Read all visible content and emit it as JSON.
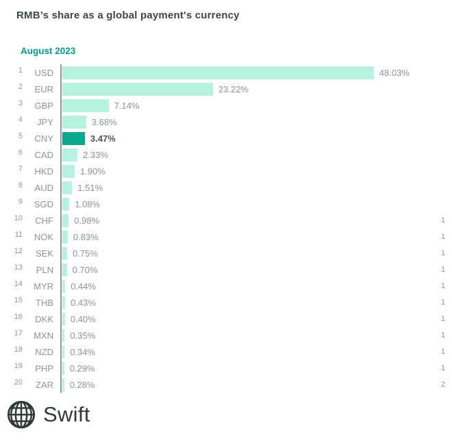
{
  "title": "RMB’s share as a global payment's currency",
  "subtitle": "August 2023",
  "chart_data": {
    "type": "bar",
    "orientation": "horizontal",
    "title": "RMB’s share as a global payment's currency",
    "subtitle": "August 2023",
    "xlim": [
      0,
      50
    ],
    "grid": false,
    "legend": "none",
    "ranks": [
      1,
      2,
      3,
      4,
      5,
      6,
      7,
      8,
      9,
      10,
      11,
      12,
      13,
      14,
      15,
      16,
      17,
      18,
      19,
      20
    ],
    "categories": [
      "USD",
      "EUR",
      "GBP",
      "JPY",
      "CNY",
      "CAD",
      "HKD",
      "AUD",
      "SGD",
      "CHF",
      "NOK",
      "SEK",
      "PLN",
      "MYR",
      "THB",
      "DKK",
      "MXN",
      "NZD",
      "PHP",
      "ZAR"
    ],
    "values": [
      48.03,
      23.22,
      7.14,
      3.68,
      3.47,
      2.33,
      1.9,
      1.51,
      1.08,
      0.98,
      0.83,
      0.75,
      0.7,
      0.44,
      0.43,
      0.4,
      0.35,
      0.34,
      0.29,
      0.28
    ],
    "value_labels": [
      "48.03%",
      "23.22%",
      "7.14%",
      "3.68%",
      "3.47%",
      "2.33%",
      "1.90%",
      "1.51%",
      "1.08%",
      "0.98%",
      "0.83%",
      "0.75%",
      "0.70%",
      "0.44%",
      "0.43%",
      "0.40%",
      "0.35%",
      "0.34%",
      "0.29%",
      "0.28%"
    ],
    "highlight_category": "CNY"
  },
  "right_edge_digits": {
    "first_row_rank": 10,
    "digits": [
      "1",
      "1",
      "1",
      "1",
      "1",
      "1",
      "1",
      "1",
      "1",
      "1",
      "2"
    ]
  },
  "logo": {
    "brand": "Swift",
    "icon": "globe-icon"
  },
  "colors": {
    "bar": "#B7F2DE",
    "bar_highlight": "#0AA88B",
    "title_text": "#3C4747",
    "subtitle_text": "#00A08C",
    "label_gray": "#8B9595",
    "highlight_label": "#4B5555",
    "axis_line": "#8F9999",
    "logo_color": "#2F3B3A",
    "background": "#FFFFFF"
  }
}
